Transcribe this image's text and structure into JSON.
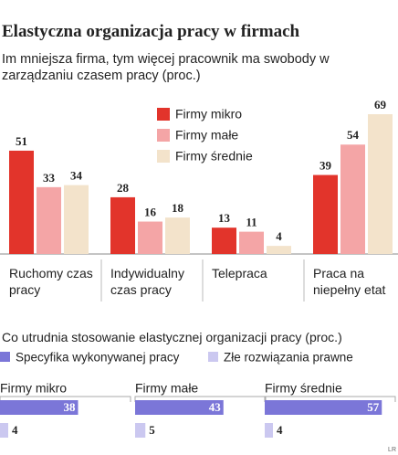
{
  "chart_data": [
    {
      "type": "bar",
      "title": "Elastyczna organizacja pracy w firmach",
      "subtitle": "Im mniejsza firma, tym więcej pracownik ma swobody w zarządzaniu czasem pracy (proc.)",
      "categories": [
        "Ruchomy czas pracy",
        "Indywidualny czas pracy",
        "Telepraca",
        "Praca na niepełny etat"
      ],
      "series": [
        {
          "name": "Firmy mikro",
          "color": "#e2342b",
          "values": [
            51,
            28,
            13,
            39
          ]
        },
        {
          "name": "Firmy małe",
          "color": "#f4a5a6",
          "values": [
            33,
            16,
            11,
            54
          ]
        },
        {
          "name": "Firmy średnie",
          "color": "#f3e3cb",
          "values": [
            34,
            18,
            4,
            69
          ]
        }
      ],
      "ylim": [
        0,
        70
      ]
    },
    {
      "type": "hbar-panels",
      "title": "Co utrudnia stosowanie elastycznej organizacji pracy (proc.)",
      "categories": [
        "Firmy mikro",
        "Firmy małe",
        "Firmy średnie"
      ],
      "series": [
        {
          "name": "Specyfika wykonywanej pracy",
          "color": "#7b76d8",
          "values": [
            38,
            43,
            57
          ]
        },
        {
          "name": "Złe rozwiązania prawne",
          "color": "#cbc8f0",
          "values": [
            4,
            5,
            4
          ]
        }
      ],
      "xlim": [
        0,
        60
      ],
      "source": "LR"
    }
  ]
}
